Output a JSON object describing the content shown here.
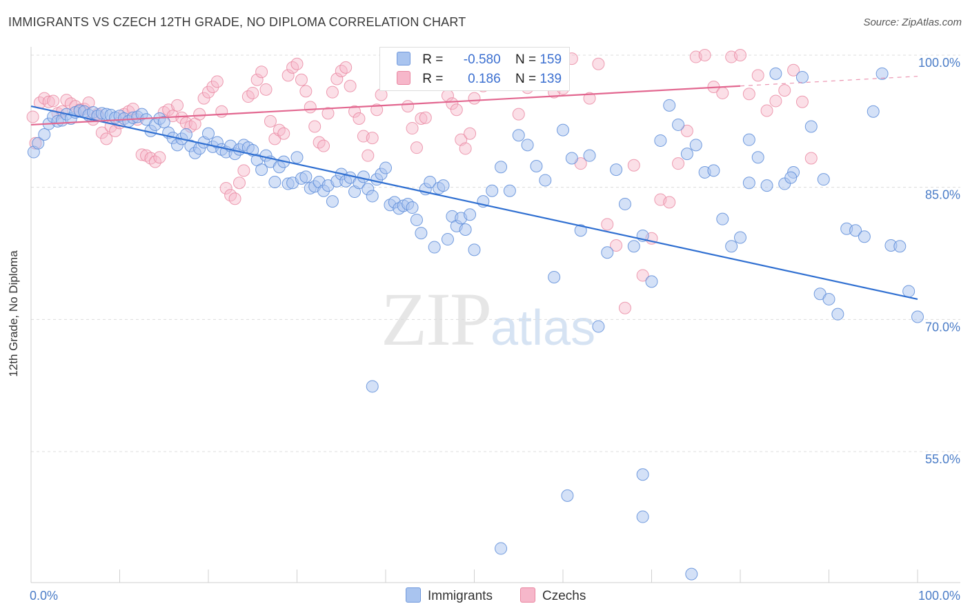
{
  "header": {
    "title": "IMMIGRANTS VS CZECH 12TH GRADE, NO DIPLOMA CORRELATION CHART",
    "source": "Source: ZipAtlas.com"
  },
  "watermark": {
    "zip": "ZIP",
    "atlas": "atlas"
  },
  "legend": {
    "rows": [
      {
        "r_label": "R =",
        "r_value": "-0.580",
        "n_label": "N =",
        "n_value": "159",
        "color": "#a9c4ef"
      },
      {
        "r_label": "R =",
        "r_value": "0.186",
        "n_label": "N =",
        "n_value": "139",
        "color": "#f6b7ca"
      }
    ]
  },
  "bottom_legend": [
    {
      "label": "Immigrants",
      "color": "#a9c4ef"
    },
    {
      "label": "Czechs",
      "color": "#f6b7ca"
    }
  ],
  "chart_data": {
    "type": "scatter",
    "title": "IMMIGRANTS VS CZECH 12TH GRADE, NO DIPLOMA CORRELATION CHART",
    "ylabel": "12th Grade, No Diploma",
    "xlabel": "",
    "xlim": [
      0,
      100
    ],
    "ylim": [
      40,
      102
    ],
    "x_ticks": [
      0,
      100
    ],
    "x_tick_labels": [
      "0.0%",
      "100.0%"
    ],
    "y_ticks": [
      55,
      70,
      85,
      100
    ],
    "y_tick_labels": [
      "55.0%",
      "70.0%",
      "85.0%",
      "100.0%"
    ],
    "grid": "horizontal dashed",
    "legend_position": "top-center",
    "colors": {
      "immigrants_fill": "#a9c4ef",
      "immigrants_stroke": "#5b8bd8",
      "immigrants_line": "#2f6fd1",
      "czechs_fill": "#f6b7ca",
      "czechs_stroke": "#e9849f",
      "czechs_line": "#e2668f"
    },
    "series": [
      {
        "name": "Immigrants",
        "trend": {
          "x": [
            0,
            100
          ],
          "y": [
            94.2,
            72.3
          ]
        },
        "points": [
          [
            0.3,
            89
          ],
          [
            0.8,
            90
          ],
          [
            1.5,
            91
          ],
          [
            2,
            92.2
          ],
          [
            2.5,
            93
          ],
          [
            3,
            92.5
          ],
          [
            3.5,
            92.6
          ],
          [
            4,
            93.3
          ],
          [
            4.5,
            92.8
          ],
          [
            5,
            93.5
          ],
          [
            5.5,
            93.7
          ],
          [
            6,
            93.6
          ],
          [
            6.5,
            93.2
          ],
          [
            7,
            93.5
          ],
          [
            7.5,
            93.1
          ],
          [
            8,
            93.4
          ],
          [
            8.5,
            93.3
          ],
          [
            9,
            93.2
          ],
          [
            9.5,
            92.9
          ],
          [
            10,
            93.1
          ],
          [
            10.5,
            92.8
          ],
          [
            11,
            92.5
          ],
          [
            11.5,
            92.9
          ],
          [
            12,
            93
          ],
          [
            12.5,
            93.3
          ],
          [
            13,
            92.7
          ],
          [
            13.5,
            91.4
          ],
          [
            14,
            92.1
          ],
          [
            14.5,
            92.8
          ],
          [
            15,
            92.4
          ],
          [
            15.5,
            91.2
          ],
          [
            16,
            90.6
          ],
          [
            16.5,
            89.8
          ],
          [
            17,
            90.5
          ],
          [
            17.5,
            91
          ],
          [
            18,
            89.7
          ],
          [
            18.5,
            88.9
          ],
          [
            19,
            89.4
          ],
          [
            19.5,
            90.1
          ],
          [
            20,
            91.1
          ],
          [
            20.5,
            89.6
          ],
          [
            21,
            90.1
          ],
          [
            21.5,
            89.3
          ],
          [
            22,
            89
          ],
          [
            22.5,
            89.7
          ],
          [
            23,
            88.8
          ],
          [
            23.5,
            89.3
          ],
          [
            24,
            89.8
          ],
          [
            24.5,
            89.5
          ],
          [
            25,
            89.2
          ],
          [
            25.5,
            88.1
          ],
          [
            26,
            87
          ],
          [
            26.5,
            88.6
          ],
          [
            27,
            87.9
          ],
          [
            27.5,
            85.6
          ],
          [
            28,
            87.3
          ],
          [
            28.5,
            87.9
          ],
          [
            29,
            85.4
          ],
          [
            29.5,
            85.5
          ],
          [
            30,
            88.4
          ],
          [
            30.5,
            86
          ],
          [
            31,
            86.2
          ],
          [
            31.5,
            84.9
          ],
          [
            32,
            85.1
          ],
          [
            32.5,
            85.6
          ],
          [
            33,
            84.6
          ],
          [
            33.5,
            85.2
          ],
          [
            34,
            83.4
          ],
          [
            34.5,
            85.7
          ],
          [
            35,
            86.5
          ],
          [
            35.5,
            85.7
          ],
          [
            36,
            86.1
          ],
          [
            36.5,
            84.5
          ],
          [
            37,
            85.5
          ],
          [
            37.5,
            86.2
          ],
          [
            38,
            84.8
          ],
          [
            38.5,
            84
          ],
          [
            39,
            85.9
          ],
          [
            39.5,
            86.5
          ],
          [
            40,
            87.2
          ],
          [
            40.5,
            83
          ],
          [
            41,
            83.3
          ],
          [
            41.5,
            82.6
          ],
          [
            42,
            82.9
          ],
          [
            42.5,
            83.1
          ],
          [
            43,
            82.7
          ],
          [
            43.5,
            81.3
          ],
          [
            44,
            79.8
          ],
          [
            44.5,
            84.8
          ],
          [
            45,
            85.6
          ],
          [
            45.5,
            78.2
          ],
          [
            46,
            84.9
          ],
          [
            46.5,
            85.2
          ],
          [
            47,
            79.1
          ],
          [
            47.5,
            81.7
          ],
          [
            48,
            80.6
          ],
          [
            48.5,
            81.5
          ],
          [
            49,
            80.2
          ],
          [
            49.5,
            81.9
          ],
          [
            50,
            77.9
          ],
          [
            51,
            83.4
          ],
          [
            52,
            84.6
          ],
          [
            53,
            87.3
          ],
          [
            54,
            84.6
          ],
          [
            55,
            90.9
          ],
          [
            56,
            89.8
          ],
          [
            57,
            87.4
          ],
          [
            58,
            85.8
          ],
          [
            59,
            74.8
          ],
          [
            60,
            91.5
          ],
          [
            61,
            88.3
          ],
          [
            62,
            80.1
          ],
          [
            63,
            88.6
          ],
          [
            64,
            69.2
          ],
          [
            65,
            77.6
          ],
          [
            66,
            87
          ],
          [
            67,
            83.1
          ],
          [
            68,
            78.3
          ],
          [
            69,
            79.5
          ],
          [
            70,
            74.3
          ],
          [
            71,
            90.3
          ],
          [
            72,
            94.3
          ],
          [
            73,
            92.1
          ],
          [
            74,
            88.8
          ],
          [
            75,
            89.8
          ],
          [
            76,
            86.7
          ],
          [
            77,
            86.9
          ],
          [
            78,
            81.4
          ],
          [
            79,
            78.3
          ],
          [
            80,
            79.3
          ],
          [
            81,
            90.4
          ],
          [
            82,
            88.4
          ],
          [
            83,
            85.2
          ],
          [
            84,
            97.9
          ],
          [
            85,
            85.4
          ],
          [
            86,
            86.7
          ],
          [
            87,
            97.5
          ],
          [
            88,
            91.9
          ],
          [
            89,
            72.9
          ],
          [
            90,
            72.3
          ],
          [
            91,
            70.6
          ],
          [
            92,
            80.3
          ],
          [
            93,
            80.1
          ],
          [
            94,
            79.4
          ],
          [
            95,
            93.6
          ],
          [
            96,
            97.9
          ],
          [
            97,
            78.4
          ],
          [
            98,
            78.3
          ],
          [
            99,
            73.2
          ],
          [
            100,
            70.3
          ],
          [
            38.5,
            62.4
          ],
          [
            69,
            52.4
          ],
          [
            60.5,
            50
          ],
          [
            69,
            47.6
          ],
          [
            53,
            44
          ],
          [
            74.5,
            41.1
          ],
          [
            85.7,
            86.1
          ],
          [
            89.4,
            85.9
          ],
          [
            81,
            85.5
          ]
        ]
      },
      {
        "name": "Czechs",
        "trend": {
          "x": [
            0,
            80
          ],
          "y": [
            92.1,
            96.5
          ],
          "dashed_to": [
            100,
            97.6
          ]
        },
        "points": [
          [
            0.2,
            93
          ],
          [
            0.5,
            90
          ],
          [
            1,
            94.6
          ],
          [
            1.5,
            95.1
          ],
          [
            2,
            94.7
          ],
          [
            2.5,
            94.8
          ],
          [
            3,
            93.4
          ],
          [
            3.5,
            93.6
          ],
          [
            4,
            94.9
          ],
          [
            4.5,
            94.5
          ],
          [
            5,
            94.2
          ],
          [
            5.5,
            93.8
          ],
          [
            6,
            93.9
          ],
          [
            6.5,
            94.6
          ],
          [
            7,
            92.7
          ],
          [
            7.5,
            93.3
          ],
          [
            8,
            91.2
          ],
          [
            8.5,
            90.5
          ],
          [
            9,
            91.9
          ],
          [
            9.5,
            91.4
          ],
          [
            10,
            92.3
          ],
          [
            10.5,
            93.3
          ],
          [
            11,
            93.6
          ],
          [
            11.5,
            93.9
          ],
          [
            12,
            92.7
          ],
          [
            12.5,
            88.7
          ],
          [
            13,
            88.6
          ],
          [
            13.5,
            88.3
          ],
          [
            14,
            87.9
          ],
          [
            14.5,
            88.4
          ],
          [
            15,
            93.5
          ],
          [
            15.5,
            93.8
          ],
          [
            16,
            93.1
          ],
          [
            16.5,
            94.3
          ],
          [
            17,
            92.9
          ],
          [
            17.5,
            92.3
          ],
          [
            18,
            91.9
          ],
          [
            18.5,
            92.2
          ],
          [
            19,
            93.3
          ],
          [
            19.5,
            95.1
          ],
          [
            20,
            95.8
          ],
          [
            20.5,
            96.4
          ],
          [
            21,
            97
          ],
          [
            21.5,
            93.6
          ],
          [
            22,
            84.9
          ],
          [
            22.5,
            84.1
          ],
          [
            23,
            83.7
          ],
          [
            23.5,
            85.5
          ],
          [
            24,
            86.9
          ],
          [
            24.5,
            95.3
          ],
          [
            25,
            95.7
          ],
          [
            25.5,
            97.2
          ],
          [
            26,
            98.1
          ],
          [
            26.5,
            96.1
          ],
          [
            27,
            92.5
          ],
          [
            27.5,
            90.5
          ],
          [
            28,
            91.5
          ],
          [
            28.5,
            91.1
          ],
          [
            29,
            97.7
          ],
          [
            29.5,
            98.6
          ],
          [
            30,
            99
          ],
          [
            30.5,
            97.2
          ],
          [
            31,
            95.9
          ],
          [
            31.5,
            94.1
          ],
          [
            32,
            91.9
          ],
          [
            32.5,
            90.1
          ],
          [
            33,
            89.7
          ],
          [
            33.5,
            93.4
          ],
          [
            34,
            95.8
          ],
          [
            34.5,
            97.3
          ],
          [
            35,
            98.2
          ],
          [
            35.5,
            98.6
          ],
          [
            36,
            96.5
          ],
          [
            36.5,
            93.6
          ],
          [
            37,
            92.8
          ],
          [
            37.5,
            90.8
          ],
          [
            38,
            88.6
          ],
          [
            38.5,
            90.6
          ],
          [
            39,
            93.8
          ],
          [
            39.5,
            95.5
          ],
          [
            40,
            96.9
          ],
          [
            40.5,
            99.3
          ],
          [
            41,
            99
          ],
          [
            41.5,
            98.6
          ],
          [
            42,
            96.7
          ],
          [
            42.5,
            94.2
          ],
          [
            43,
            91.7
          ],
          [
            43.5,
            89.5
          ],
          [
            44,
            92.8
          ],
          [
            44.5,
            92.9
          ],
          [
            45,
            96.8
          ],
          [
            45.5,
            97.2
          ],
          [
            46,
            98.1
          ],
          [
            46.5,
            99.6
          ],
          [
            47,
            95.4
          ],
          [
            47.5,
            94.5
          ],
          [
            48,
            93.8
          ],
          [
            48.5,
            90.4
          ],
          [
            49,
            89.4
          ],
          [
            49.5,
            91.1
          ],
          [
            50,
            95.1
          ],
          [
            51,
            96.5
          ],
          [
            52,
            97.2
          ],
          [
            53,
            98.2
          ],
          [
            54,
            99.1
          ],
          [
            55,
            93.3
          ],
          [
            56,
            96.3
          ],
          [
            57,
            98.6
          ],
          [
            58,
            99.4
          ],
          [
            59,
            95.8
          ],
          [
            60,
            96.2
          ],
          [
            61,
            99.6
          ],
          [
            62,
            87.7
          ],
          [
            63,
            95.1
          ],
          [
            64,
            99
          ],
          [
            65,
            80.8
          ],
          [
            66,
            78.4
          ],
          [
            67,
            71.3
          ],
          [
            68,
            87.5
          ],
          [
            69,
            75
          ],
          [
            70,
            79.2
          ],
          [
            71,
            83.6
          ],
          [
            72,
            83.3
          ],
          [
            73,
            87.7
          ],
          [
            74,
            91.4
          ],
          [
            75,
            99.8
          ],
          [
            76,
            100
          ],
          [
            77,
            96.4
          ],
          [
            78,
            95.7
          ],
          [
            79,
            99.8
          ],
          [
            80,
            100
          ],
          [
            81,
            95.6
          ],
          [
            82,
            97.7
          ],
          [
            83,
            93.7
          ],
          [
            84,
            94.8
          ],
          [
            85,
            96
          ],
          [
            86,
            98.3
          ],
          [
            87,
            94.7
          ],
          [
            88,
            88.3
          ]
        ]
      }
    ]
  }
}
